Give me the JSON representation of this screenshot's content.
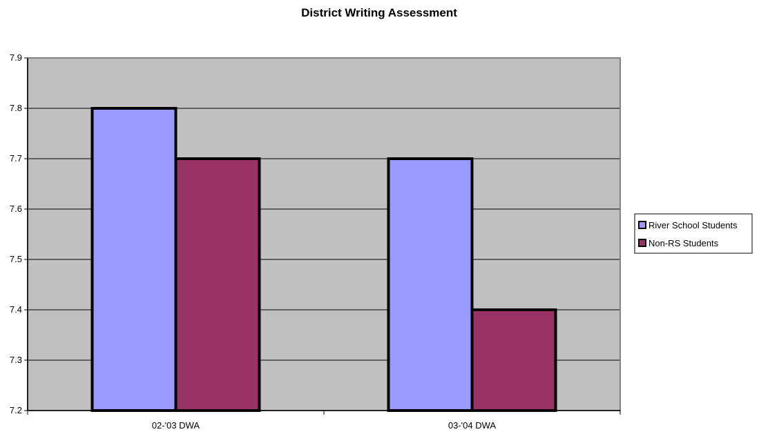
{
  "chart_data": {
    "type": "bar",
    "title": "District Writing Assessment",
    "categories": [
      "02-'03 DWA",
      "03-'04 DWA"
    ],
    "series": [
      {
        "name": "River School Students",
        "values": [
          7.8,
          7.7
        ],
        "color": "#9999ff"
      },
      {
        "name": "Non-RS Students",
        "values": [
          7.7,
          7.4
        ],
        "color": "#993366"
      }
    ],
    "y_ticks": [
      "7.2",
      "7.3",
      "7.4",
      "7.5",
      "7.6",
      "7.7",
      "7.8",
      "7.9"
    ],
    "ylim": [
      7.2,
      7.9
    ],
    "grid": true,
    "plot_background": "#c0c0c0",
    "legend_position": "right"
  }
}
